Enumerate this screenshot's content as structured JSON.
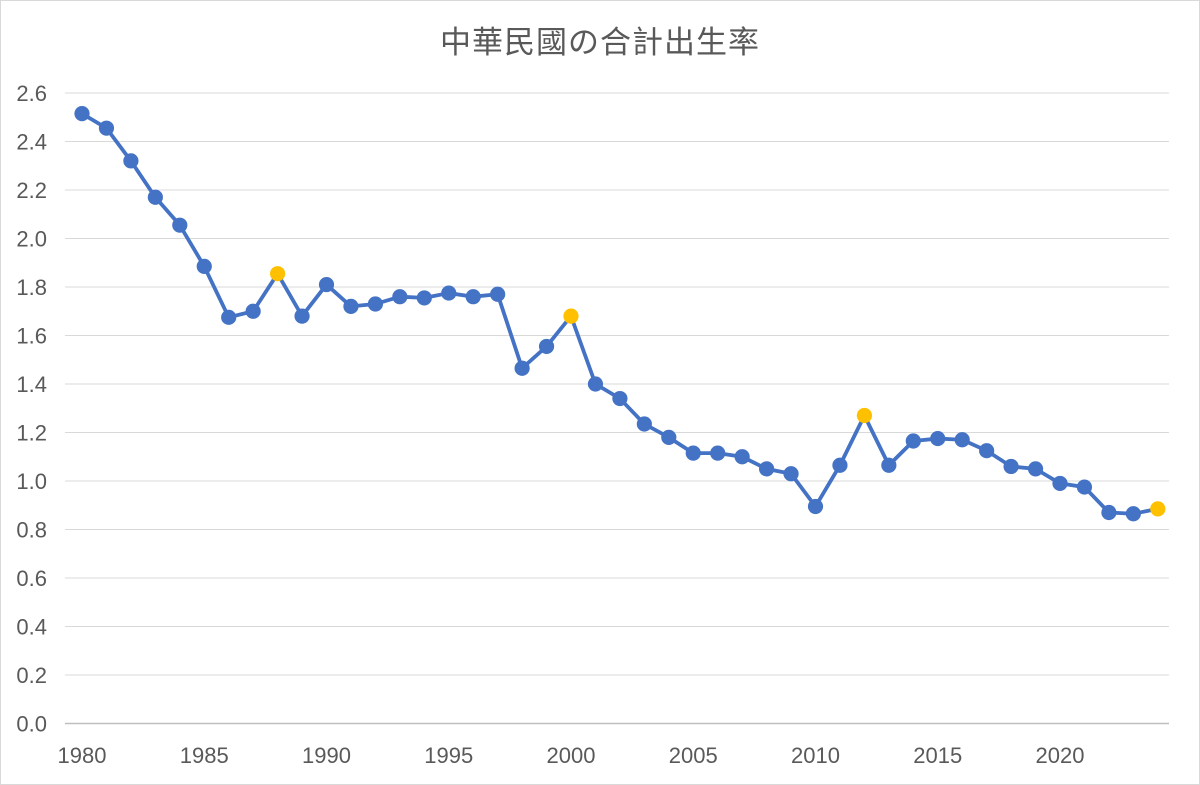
{
  "chart_data": {
    "type": "line",
    "title": "中華民國の合計出生率",
    "xlabel": "",
    "ylabel": "",
    "x": [
      1980,
      1981,
      1982,
      1983,
      1984,
      1985,
      1986,
      1987,
      1988,
      1989,
      1990,
      1991,
      1992,
      1993,
      1994,
      1995,
      1996,
      1997,
      1998,
      1999,
      2000,
      2001,
      2002,
      2003,
      2004,
      2005,
      2006,
      2007,
      2008,
      2009,
      2010,
      2011,
      2012,
      2013,
      2014,
      2015,
      2016,
      2017,
      2018,
      2019,
      2020,
      2021,
      2022,
      2023,
      2024
    ],
    "series": [
      {
        "name": "合計出生率",
        "values": [
          2.515,
          2.455,
          2.32,
          2.17,
          2.055,
          1.885,
          1.675,
          1.7,
          1.855,
          1.68,
          1.81,
          1.72,
          1.73,
          1.76,
          1.755,
          1.775,
          1.76,
          1.77,
          1.465,
          1.555,
          1.68,
          1.4,
          1.34,
          1.235,
          1.18,
          1.115,
          1.115,
          1.1,
          1.05,
          1.03,
          0.895,
          1.065,
          1.27,
          1.065,
          1.165,
          1.175,
          1.17,
          1.125,
          1.06,
          1.05,
          0.99,
          0.975,
          0.87,
          0.865,
          0.885
        ]
      }
    ],
    "highlighted_x": [
      1988,
      2000,
      2012,
      2024
    ],
    "xticks": [
      "1980",
      "1985",
      "1990",
      "1995",
      "2000",
      "2005",
      "2010",
      "2015",
      "2020"
    ],
    "yticks": [
      "0.0",
      "0.2",
      "0.4",
      "0.6",
      "0.8",
      "1.0",
      "1.2",
      "1.4",
      "1.6",
      "1.8",
      "2.0",
      "2.2",
      "2.4",
      "2.6"
    ],
    "xlim": [
      1980,
      2024
    ],
    "ylim": [
      0.0,
      2.6
    ],
    "grid": "horizontal",
    "legend": "none",
    "colors": {
      "line": "#4472C4",
      "marker": "#4472C4",
      "highlight_marker": "#FFC000",
      "gridline": "#D9D9D9",
      "axis_line": "#BFBFBF",
      "text": "#595959"
    }
  }
}
